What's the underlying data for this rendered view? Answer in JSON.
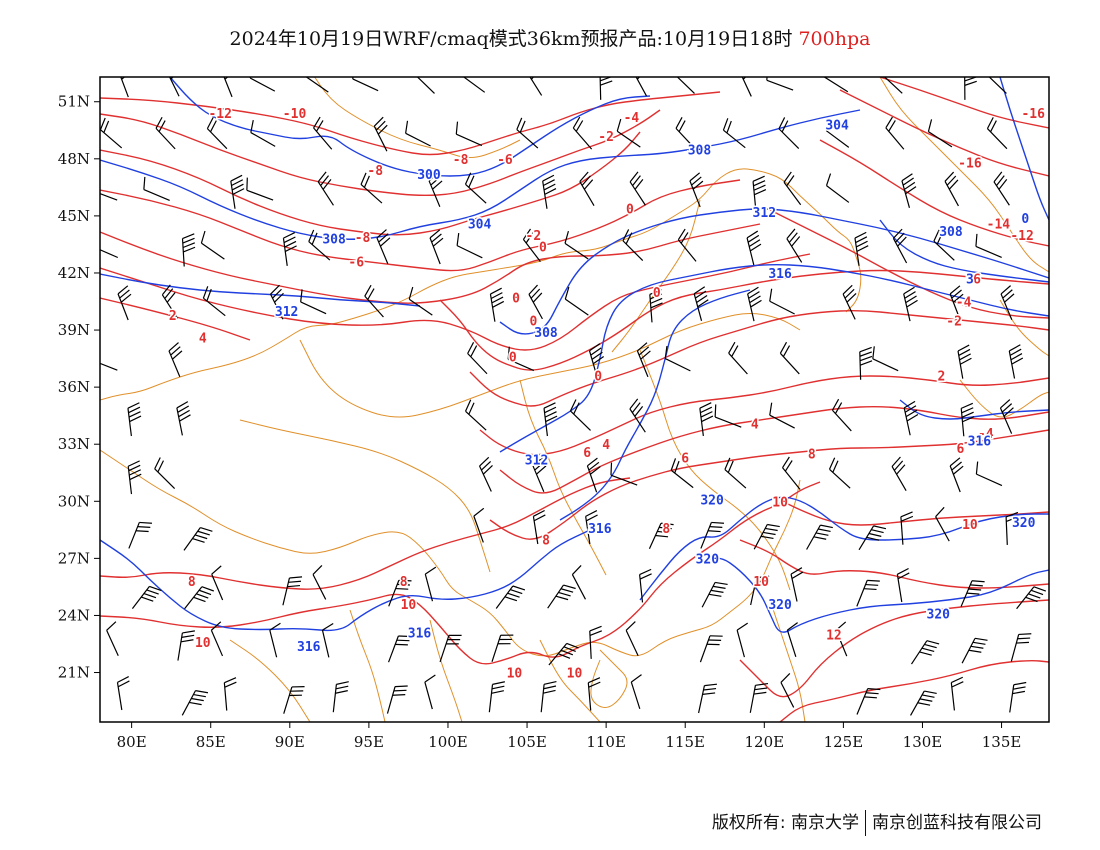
{
  "title": {
    "main": "2024年10月19日WRF/cmaq模式36km预报产品:10月19日18时",
    "level": "700hpa"
  },
  "axes": {
    "lat_labels": [
      "51N",
      "48N",
      "45N",
      "42N",
      "39N",
      "36N",
      "33N",
      "30N",
      "27N",
      "24N",
      "21N"
    ],
    "lat_values": [
      51,
      48,
      45,
      42,
      39,
      36,
      33,
      30,
      27,
      24,
      21
    ],
    "lon_labels": [
      "80E",
      "85E",
      "90E",
      "95E",
      "100E",
      "105E",
      "110E",
      "115E",
      "120E",
      "125E",
      "130E",
      "135E"
    ],
    "lon_values": [
      80,
      85,
      90,
      95,
      100,
      105,
      110,
      115,
      120,
      125,
      130,
      135
    ],
    "lon_range": [
      78,
      138
    ],
    "lat_range": [
      18.4,
      52.3
    ]
  },
  "colors": {
    "temperature": "#e03030",
    "height": "#2040e0",
    "wind": "#000000",
    "borders": "#e0902a"
  },
  "temperature_labels": [
    {
      "text": "-12",
      "lon": 85.6,
      "lat": 50.4
    },
    {
      "text": "-10",
      "lon": 90.3,
      "lat": 50.4
    },
    {
      "text": "-8",
      "lon": 95.4,
      "lat": 47.4
    },
    {
      "text": "-8",
      "lon": 100.8,
      "lat": 48.0
    },
    {
      "text": "-6",
      "lon": 103.6,
      "lat": 48.0
    },
    {
      "text": "-2",
      "lon": 110.0,
      "lat": 49.2
    },
    {
      "text": "-4",
      "lon": 111.6,
      "lat": 50.2
    },
    {
      "text": "-8",
      "lon": 94.6,
      "lat": 43.9
    },
    {
      "text": "-6",
      "lon": 94.2,
      "lat": 42.6
    },
    {
      "text": "-2",
      "lon": 105.4,
      "lat": 44.0
    },
    {
      "text": "0",
      "lon": 106.0,
      "lat": 43.4
    },
    {
      "text": "0",
      "lon": 111.5,
      "lat": 45.4
    },
    {
      "text": "0",
      "lon": 104.3,
      "lat": 40.7
    },
    {
      "text": "0",
      "lon": 105.4,
      "lat": 39.5
    },
    {
      "text": "0",
      "lon": 104.1,
      "lat": 37.6
    },
    {
      "text": "0",
      "lon": 109.5,
      "lat": 36.6
    },
    {
      "text": "0",
      "lon": 113.2,
      "lat": 41.0
    },
    {
      "text": "2",
      "lon": 82.6,
      "lat": 39.8
    },
    {
      "text": "4",
      "lon": 84.5,
      "lat": 38.6
    },
    {
      "text": "4",
      "lon": 119.4,
      "lat": 34.1
    },
    {
      "text": "6",
      "lon": 108.8,
      "lat": 32.6
    },
    {
      "text": "4",
      "lon": 110.0,
      "lat": 33.0
    },
    {
      "text": "6",
      "lon": 115.0,
      "lat": 32.3
    },
    {
      "text": "8",
      "lon": 123.0,
      "lat": 32.5
    },
    {
      "text": "8",
      "lon": 106.2,
      "lat": 28.0
    },
    {
      "text": "8",
      "lon": 113.8,
      "lat": 28.6
    },
    {
      "text": "8",
      "lon": 83.8,
      "lat": 25.8
    },
    {
      "text": "8",
      "lon": 97.2,
      "lat": 25.8
    },
    {
      "text": "10",
      "lon": 121.0,
      "lat": 30.0
    },
    {
      "text": "10",
      "lon": 133.0,
      "lat": 28.8
    },
    {
      "text": "10",
      "lon": 84.5,
      "lat": 22.6
    },
    {
      "text": "10",
      "lon": 97.5,
      "lat": 24.6
    },
    {
      "text": "10",
      "lon": 104.2,
      "lat": 21.0
    },
    {
      "text": "10",
      "lon": 108.0,
      "lat": 21.0
    },
    {
      "text": "10",
      "lon": 119.8,
      "lat": 25.8
    },
    {
      "text": "12",
      "lon": 124.4,
      "lat": 23.0
    },
    {
      "text": "-16",
      "lon": 133.0,
      "lat": 47.8
    },
    {
      "text": "-16",
      "lon": 137.0,
      "lat": 50.4
    },
    {
      "text": "-14",
      "lon": 134.8,
      "lat": 44.6
    },
    {
      "text": "-12",
      "lon": 136.3,
      "lat": 44.0
    },
    {
      "text": "-6",
      "lon": 133.2,
      "lat": 41.7
    },
    {
      "text": "-4",
      "lon": 132.6,
      "lat": 40.5
    },
    {
      "text": "-2",
      "lon": 132.0,
      "lat": 39.5
    },
    {
      "text": "2",
      "lon": 131.2,
      "lat": 36.6
    },
    {
      "text": "-4",
      "lon": 134.0,
      "lat": 33.6
    },
    {
      "text": "6",
      "lon": 132.4,
      "lat": 32.8
    }
  ],
  "height_labels": [
    {
      "text": "304",
      "lon": 124.6,
      "lat": 49.8
    },
    {
      "text": "308",
      "lon": 115.9,
      "lat": 48.5
    },
    {
      "text": "300",
      "lon": 98.8,
      "lat": 47.2
    },
    {
      "text": "304",
      "lon": 102.0,
      "lat": 44.6
    },
    {
      "text": "308",
      "lon": 92.8,
      "lat": 43.8
    },
    {
      "text": "312",
      "lon": 120.0,
      "lat": 45.2
    },
    {
      "text": "308",
      "lon": 131.8,
      "lat": 44.2
    },
    {
      "text": "312",
      "lon": 89.8,
      "lat": 40.0
    },
    {
      "text": "316",
      "lon": 121.0,
      "lat": 42.0
    },
    {
      "text": "308",
      "lon": 106.2,
      "lat": 38.9
    },
    {
      "text": "312",
      "lon": 105.6,
      "lat": 32.2
    },
    {
      "text": "316",
      "lon": 109.6,
      "lat": 28.6
    },
    {
      "text": "320",
      "lon": 116.7,
      "lat": 30.1
    },
    {
      "text": "320",
      "lon": 116.4,
      "lat": 27.0
    },
    {
      "text": "320",
      "lon": 121.0,
      "lat": 24.6
    },
    {
      "text": "320",
      "lon": 131.0,
      "lat": 24.1
    },
    {
      "text": "320",
      "lon": 136.4,
      "lat": 28.9
    },
    {
      "text": "316",
      "lon": 91.2,
      "lat": 22.4
    },
    {
      "text": "316",
      "lon": 98.2,
      "lat": 23.1
    },
    {
      "text": "316",
      "lon": 133.6,
      "lat": 33.2
    },
    {
      "text": "3",
      "lon": 133.0,
      "lat": 41.7
    },
    {
      "text": "0",
      "lon": 136.5,
      "lat": 44.9
    }
  ],
  "credits": {
    "left": "版权所有: 南京大学",
    "right": "南京创蓝科技有限公司"
  }
}
